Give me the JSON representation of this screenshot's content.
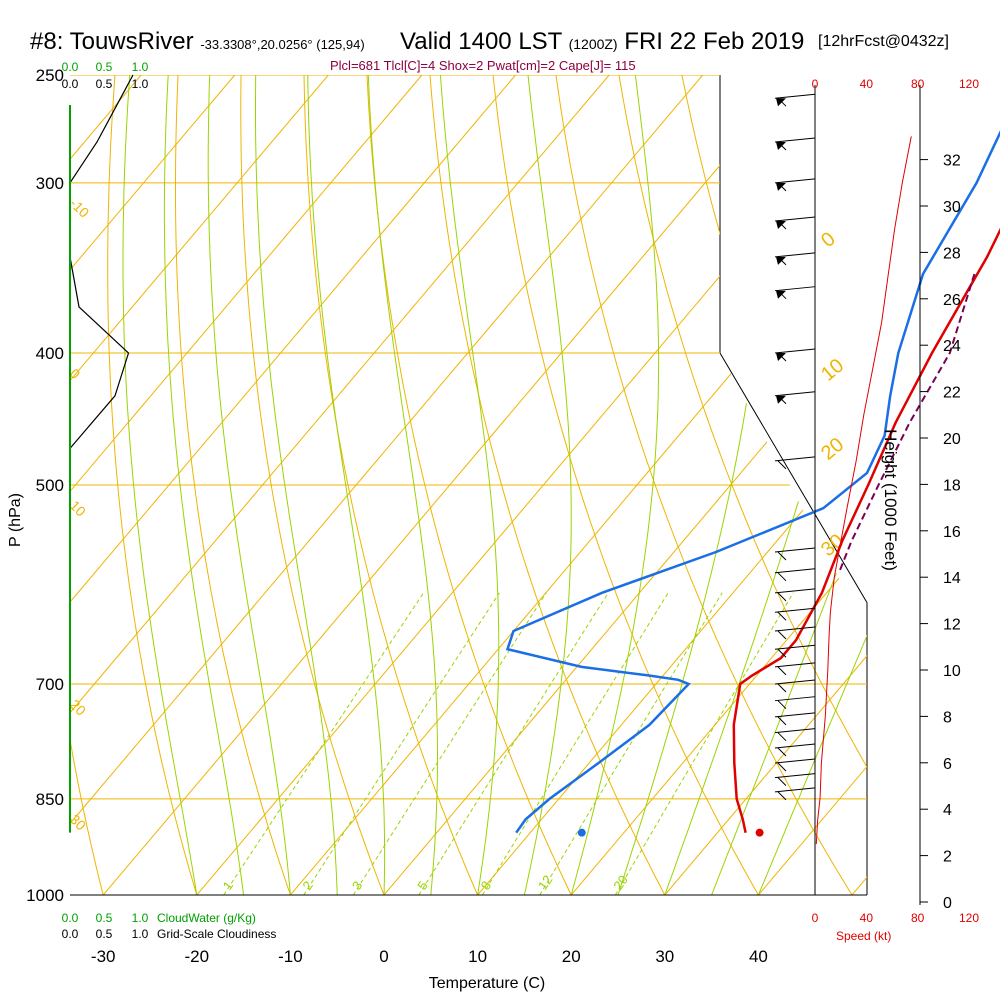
{
  "header": {
    "station": "#8: TouwsRiver",
    "coords": "-33.3308°,20.0256° (125,94)",
    "valid": "Valid 1400 LST",
    "zulu": "(1200Z)",
    "date": "FRI 22 Feb 2019",
    "forecast": "[12hrFcst@0432z]",
    "indices": "Plcl=681 Tlcl[C]=4 Shox=2 Pwat[cm]=2 Cape[J]= 115"
  },
  "colors": {
    "isotherm": "#f0b400",
    "dry_adiabat": "#f0b400",
    "moist_adiabat": "#9bd400",
    "mixing_ratio": "#9bd400",
    "temperature": "#e00000",
    "dewpoint": "#1a6ee6",
    "parcel": "#7a0055",
    "cloud": "#00a000",
    "wind_speed": "#e00000"
  },
  "chart_data": {
    "type": "line",
    "title": "",
    "xlabel": "Temperature (C)",
    "ylabel": "P (hPa)",
    "y2label": "Height (1000 Feet)",
    "x_ticks": [
      "-30",
      "-20",
      "-10",
      "0",
      "10",
      "20",
      "30",
      "40"
    ],
    "xlim": [
      -34,
      48
    ],
    "p_ticks": [
      "250",
      "300",
      "400",
      "500",
      "700",
      "850",
      "1000"
    ],
    "ylim_hpa": [
      1000,
      250
    ],
    "height_ticks": [
      "0",
      "2",
      "4",
      "6",
      "8",
      "10",
      "12",
      "14",
      "16",
      "18",
      "20",
      "22",
      "24",
      "26",
      "28",
      "30",
      "32"
    ],
    "isotherm_labels": [
      {
        "text": "-10",
        "p": 300
      },
      {
        "text": "0",
        "p": 400
      },
      {
        "text": "10",
        "p": 500
      },
      {
        "text": "20",
        "p": 700
      },
      {
        "text": "30",
        "p": 850
      }
    ],
    "dry_adiabat_labels": [
      {
        "text": "0",
        "t": 37,
        "p": 335
      },
      {
        "text": "10",
        "t": 39,
        "p": 420
      },
      {
        "text": "20",
        "t": 43,
        "p": 480
      },
      {
        "text": "30",
        "t": 49,
        "p": 565
      }
    ],
    "mixing_ratio_labels": [
      "1",
      "2",
      "3",
      "5",
      "8",
      "12",
      "20"
    ],
    "mixing_ratio_values": [
      1,
      2,
      3,
      5,
      8,
      12,
      20
    ],
    "series": [
      {
        "name": "Temperature",
        "p": [
          270,
          300,
          340,
          400,
          450,
          500,
          550,
          600,
          650,
          670,
          690,
          700,
          750,
          800,
          850,
          880,
          900
        ],
        "t": [
          0.5,
          4.0,
          6.8,
          9.6,
          12.0,
          14.7,
          17.0,
          19.5,
          21.0,
          21.0,
          19.5,
          19.0,
          22.0,
          25.5,
          29.0,
          31.5,
          33.0
        ]
      },
      {
        "name": "Dewpoint",
        "p": [
          270,
          300,
          350,
          400,
          430,
          460,
          490,
          520,
          560,
          600,
          640,
          660,
          680,
          690,
          695,
          700,
          750,
          800,
          850,
          880,
          900
        ],
        "t": [
          -3.5,
          -1.0,
          1.5,
          6.0,
          9.0,
          12.0,
          13.5,
          12.0,
          4.5,
          -4.0,
          -10.0,
          -9.0,
          0.5,
          8.5,
          12.0,
          13.5,
          13.0,
          11.0,
          9.0,
          8.3,
          8.5
        ]
      },
      {
        "name": "Parcel",
        "p": [
          350,
          400,
          450,
          500,
          550,
          580
        ],
        "t": [
          7.0,
          11.5,
          13.5,
          15.8,
          18.0,
          19.5
        ]
      }
    ],
    "surface_points": [
      {
        "name": "surface-temperature",
        "p": 900,
        "t": 34.5
      },
      {
        "name": "surface-dewpoint",
        "p": 900,
        "t": 15.5
      }
    ],
    "wind_profile": {
      "label": "Speed (kt)",
      "ticks": [
        "0",
        "40",
        "80",
        "120"
      ],
      "xlim": [
        0,
        120
      ],
      "height_kft": [
        2.5,
        3.5,
        4.5,
        6,
        8,
        10,
        11.5,
        12.5,
        14,
        15.5,
        17,
        19,
        21,
        23,
        25,
        27,
        29,
        31,
        33
      ],
      "speed": [
        1,
        2,
        4,
        5,
        8,
        10,
        11,
        12,
        15,
        20,
        25,
        32,
        38,
        45,
        52,
        57,
        62,
        68,
        75
      ]
    },
    "wind_barbs_p": [
      260,
      280,
      300,
      320,
      340,
      360,
      400,
      430,
      480,
      560,
      580,
      600,
      620,
      640,
      660,
      680,
      700,
      720,
      740,
      760,
      780,
      800,
      820,
      840
    ],
    "cloud_axis": {
      "top_labels": [
        "0.0",
        "0.5",
        "1.0"
      ],
      "cloudwater_label": "CloudWater (g/Kg)",
      "cloudiness_label": "Grid-Scale Cloudiness",
      "cloudiness_p": [
        250,
        280,
        300,
        340,
        370,
        400,
        430,
        470
      ],
      "cloudiness_val": [
        0.7,
        0.3,
        0.0,
        0.0,
        0.1,
        0.65,
        0.5,
        0.0
      ]
    }
  }
}
